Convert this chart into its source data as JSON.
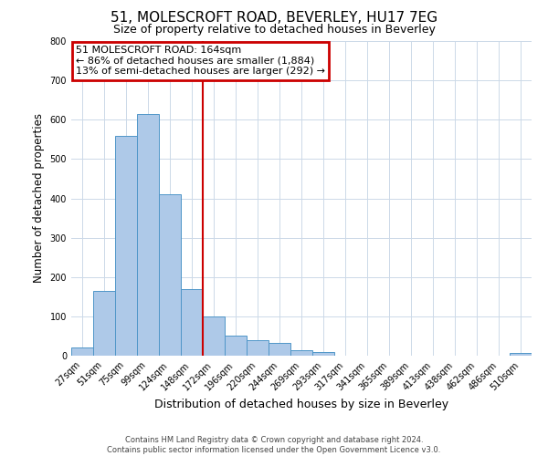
{
  "title": "51, MOLESCROFT ROAD, BEVERLEY, HU17 7EG",
  "subtitle": "Size of property relative to detached houses in Beverley",
  "xlabel": "Distribution of detached houses by size in Beverley",
  "ylabel": "Number of detached properties",
  "bar_labels": [
    "27sqm",
    "51sqm",
    "75sqm",
    "99sqm",
    "124sqm",
    "148sqm",
    "172sqm",
    "196sqm",
    "220sqm",
    "244sqm",
    "269sqm",
    "293sqm",
    "317sqm",
    "341sqm",
    "365sqm",
    "389sqm",
    "413sqm",
    "438sqm",
    "462sqm",
    "486sqm",
    "510sqm"
  ],
  "bar_values": [
    20,
    165,
    560,
    615,
    410,
    170,
    100,
    50,
    40,
    33,
    13,
    10,
    0,
    0,
    0,
    0,
    0,
    0,
    0,
    0,
    8
  ],
  "bar_color": "#aec9e8",
  "bar_edge_color": "#4f96c8",
  "vline_pos": 5.5,
  "annotation_text_line1": "51 MOLESCROFT ROAD: 164sqm",
  "annotation_text_line2": "← 86% of detached houses are smaller (1,884)",
  "annotation_text_line3": "13% of semi-detached houses are larger (292) →",
  "annotation_box_color": "#ffffff",
  "annotation_box_edge_color": "#cc0000",
  "vline_color": "#cc0000",
  "ylim": [
    0,
    800
  ],
  "yticks": [
    0,
    100,
    200,
    300,
    400,
    500,
    600,
    700,
    800
  ],
  "footer_line1": "Contains HM Land Registry data © Crown copyright and database right 2024.",
  "footer_line2": "Contains public sector information licensed under the Open Government Licence v3.0.",
  "background_color": "#ffffff",
  "grid_color": "#ccd9e8",
  "title_fontsize": 11,
  "subtitle_fontsize": 9,
  "ylabel_fontsize": 8.5,
  "xlabel_fontsize": 9,
  "tick_fontsize": 7,
  "annotation_fontsize": 8,
  "footer_fontsize": 6
}
